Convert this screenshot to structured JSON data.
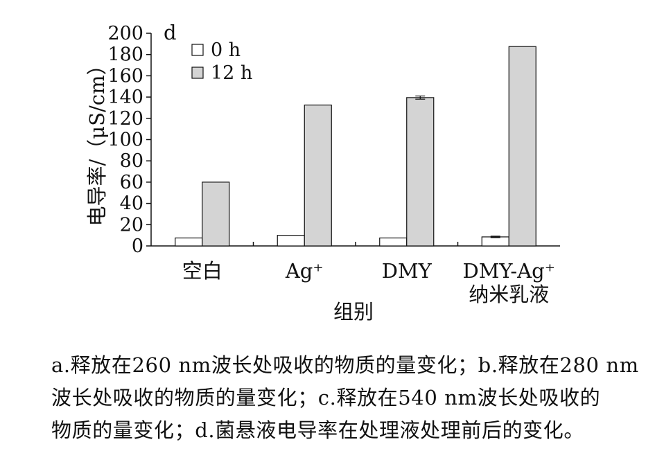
{
  "chart_data": {
    "type": "bar",
    "panel_label": "d",
    "categories": [
      "空白",
      "Ag⁺",
      "DMY",
      "DMY-Ag⁺ 纳米乳液"
    ],
    "category_lines": [
      [
        "空白"
      ],
      [
        "Ag⁺"
      ],
      [
        "DMY"
      ],
      [
        "DMY-Ag⁺",
        "纳米乳液"
      ]
    ],
    "series": [
      {
        "name": "0 h",
        "values": [
          7.5,
          10,
          7.5,
          8.5
        ],
        "errors": [
          0,
          0,
          0,
          0.7
        ],
        "color": "#ffffff"
      },
      {
        "name": "12 h",
        "values": [
          60,
          132.5,
          139.5,
          187.5
        ],
        "errors": [
          0,
          0,
          1.5,
          0
        ],
        "color": "#d4d4d4"
      }
    ],
    "ylabel": "电导率/（μS/cm）",
    "xlabel": "组别",
    "ylim": [
      0,
      200
    ],
    "yticks": [
      0,
      20,
      40,
      60,
      80,
      100,
      120,
      140,
      160,
      180,
      200
    ],
    "legend_position": "top-left",
    "grid": false
  },
  "caption": {
    "lines": [
      "a.释放在260 nm波长处吸收的物质的量变化；b.释放在280 nm",
      "波长处吸收的物质的量变化；c.释放在540 nm波长处吸收的",
      "物质的量变化；d.菌悬液电导率在处理液处理前后的变化。"
    ]
  }
}
